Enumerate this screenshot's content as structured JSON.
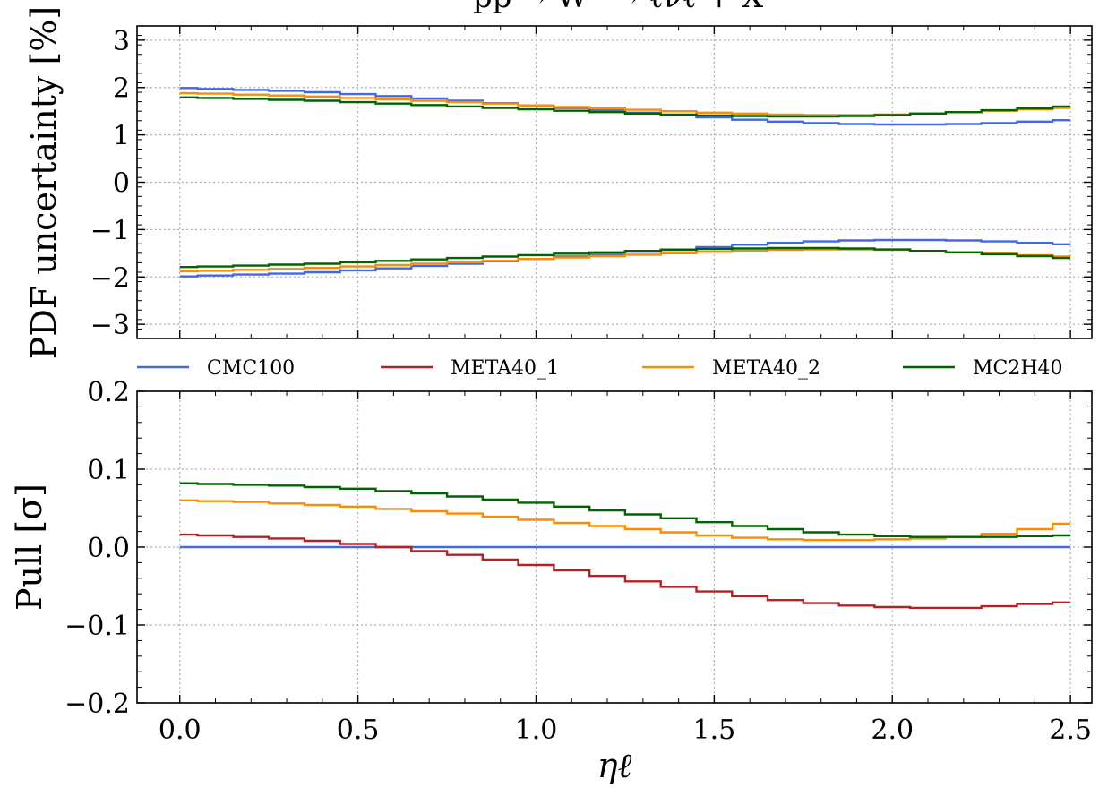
{
  "chart_data": [
    {
      "type": "line",
      "drawstyle": "steps-mid",
      "title": "pp → W⁻ → ℓν̄ℓ + X",
      "xlabel": "",
      "ylabel": "PDF uncertainty [%]",
      "xlim": [
        -0.12,
        2.56
      ],
      "ylim": [
        -3.3,
        3.3
      ],
      "yticks": [
        -3,
        -2,
        -1,
        0,
        1,
        2,
        3
      ],
      "ytick_labels": [
        "−3",
        "−2",
        "−1",
        "0",
        "1",
        "2",
        "3"
      ],
      "grid": true,
      "x": [
        0.0,
        0.1,
        0.2,
        0.3,
        0.4,
        0.5,
        0.6,
        0.7,
        0.8,
        0.9,
        1.0,
        1.1,
        1.2,
        1.3,
        1.4,
        1.5,
        1.6,
        1.7,
        1.8,
        1.9,
        2.0,
        2.1,
        2.2,
        2.3,
        2.4,
        2.5
      ],
      "series": [
        {
          "name": "CMC100",
          "color": "#4169e1",
          "band": "upper",
          "values": [
            1.99,
            1.97,
            1.95,
            1.93,
            1.9,
            1.86,
            1.82,
            1.77,
            1.72,
            1.67,
            1.62,
            1.57,
            1.52,
            1.47,
            1.42,
            1.37,
            1.32,
            1.28,
            1.25,
            1.23,
            1.22,
            1.22,
            1.23,
            1.25,
            1.28,
            1.31
          ]
        },
        {
          "name": "META40_2",
          "color": "#ff8c00",
          "band": "upper",
          "values": [
            1.88,
            1.87,
            1.85,
            1.83,
            1.81,
            1.78,
            1.75,
            1.72,
            1.69,
            1.66,
            1.62,
            1.59,
            1.56,
            1.53,
            1.5,
            1.47,
            1.45,
            1.43,
            1.42,
            1.42,
            1.43,
            1.45,
            1.48,
            1.51,
            1.54,
            1.57
          ]
        },
        {
          "name": "MC2H40",
          "color": "#006400",
          "band": "upper",
          "values": [
            1.79,
            1.78,
            1.76,
            1.74,
            1.72,
            1.69,
            1.66,
            1.63,
            1.6,
            1.57,
            1.54,
            1.51,
            1.48,
            1.45,
            1.43,
            1.41,
            1.4,
            1.39,
            1.39,
            1.4,
            1.42,
            1.45,
            1.48,
            1.52,
            1.56,
            1.6
          ]
        },
        {
          "name": "CMC100",
          "color": "#4169e1",
          "band": "lower",
          "values": [
            -1.99,
            -1.97,
            -1.95,
            -1.93,
            -1.9,
            -1.86,
            -1.82,
            -1.77,
            -1.72,
            -1.67,
            -1.62,
            -1.57,
            -1.52,
            -1.47,
            -1.42,
            -1.37,
            -1.32,
            -1.28,
            -1.25,
            -1.23,
            -1.22,
            -1.22,
            -1.23,
            -1.25,
            -1.28,
            -1.31
          ]
        },
        {
          "name": "META40_2",
          "color": "#ff8c00",
          "band": "lower",
          "values": [
            -1.88,
            -1.87,
            -1.85,
            -1.83,
            -1.81,
            -1.78,
            -1.75,
            -1.72,
            -1.69,
            -1.66,
            -1.62,
            -1.59,
            -1.56,
            -1.53,
            -1.5,
            -1.47,
            -1.45,
            -1.43,
            -1.42,
            -1.42,
            -1.43,
            -1.45,
            -1.48,
            -1.51,
            -1.54,
            -1.57
          ]
        },
        {
          "name": "MC2H40",
          "color": "#006400",
          "band": "lower",
          "values": [
            -1.79,
            -1.78,
            -1.76,
            -1.74,
            -1.72,
            -1.69,
            -1.66,
            -1.63,
            -1.6,
            -1.57,
            -1.54,
            -1.51,
            -1.48,
            -1.45,
            -1.43,
            -1.41,
            -1.4,
            -1.39,
            -1.39,
            -1.4,
            -1.42,
            -1.45,
            -1.48,
            -1.52,
            -1.56,
            -1.6
          ]
        }
      ]
    },
    {
      "type": "line",
      "drawstyle": "steps-mid",
      "title": "",
      "xlabel": "ηℓ",
      "ylabel": "Pull [σ]",
      "xlim": [
        -0.12,
        2.56
      ],
      "ylim": [
        -0.2,
        0.2
      ],
      "xticks": [
        0.0,
        0.5,
        1.0,
        1.5,
        2.0,
        2.5
      ],
      "xtick_labels": [
        "0.0",
        "0.5",
        "1.0",
        "1.5",
        "2.0",
        "2.5"
      ],
      "yticks": [
        -0.2,
        -0.1,
        0.0,
        0.1,
        0.2
      ],
      "ytick_labels": [
        "−0.2",
        "−0.1",
        "0.0",
        "0.1",
        "0.2"
      ],
      "grid": true,
      "legend": "top, horizontal, above panel",
      "x": [
        0.0,
        0.1,
        0.2,
        0.3,
        0.4,
        0.5,
        0.6,
        0.7,
        0.8,
        0.9,
        1.0,
        1.1,
        1.2,
        1.3,
        1.4,
        1.5,
        1.6,
        1.7,
        1.8,
        1.9,
        2.0,
        2.1,
        2.2,
        2.3,
        2.4,
        2.5
      ],
      "series": [
        {
          "name": "CMC100",
          "color": "#4169e1",
          "values": [
            0,
            0,
            0,
            0,
            0,
            0,
            0,
            0,
            0,
            0,
            0,
            0,
            0,
            0,
            0,
            0,
            0,
            0,
            0,
            0,
            0,
            0,
            0,
            0,
            0,
            0
          ]
        },
        {
          "name": "META40_1",
          "color": "#b22222",
          "values": [
            0.016,
            0.015,
            0.013,
            0.011,
            0.008,
            0.004,
            0.0,
            -0.005,
            -0.01,
            -0.016,
            -0.023,
            -0.03,
            -0.037,
            -0.044,
            -0.051,
            -0.057,
            -0.063,
            -0.068,
            -0.072,
            -0.075,
            -0.077,
            -0.078,
            -0.078,
            -0.076,
            -0.073,
            -0.071
          ]
        },
        {
          "name": "META40_2",
          "color": "#ff8c00",
          "values": [
            0.06,
            0.059,
            0.058,
            0.056,
            0.054,
            0.052,
            0.049,
            0.046,
            0.043,
            0.039,
            0.035,
            0.031,
            0.027,
            0.023,
            0.019,
            0.015,
            0.012,
            0.01,
            0.009,
            0.009,
            0.01,
            0.011,
            0.013,
            0.017,
            0.023,
            0.03
          ]
        },
        {
          "name": "MC2H40",
          "color": "#006400",
          "values": [
            0.082,
            0.081,
            0.08,
            0.079,
            0.077,
            0.075,
            0.072,
            0.069,
            0.065,
            0.061,
            0.057,
            0.052,
            0.047,
            0.042,
            0.037,
            0.032,
            0.027,
            0.023,
            0.019,
            0.016,
            0.014,
            0.013,
            0.013,
            0.013,
            0.014,
            0.015
          ]
        }
      ]
    }
  ],
  "legend": [
    {
      "name": "CMC100",
      "color": "#4169e1"
    },
    {
      "name": "META40_1",
      "color": "#b22222"
    },
    {
      "name": "META40_2",
      "color": "#ff8c00"
    },
    {
      "name": "MC2H40",
      "color": "#006400"
    }
  ]
}
